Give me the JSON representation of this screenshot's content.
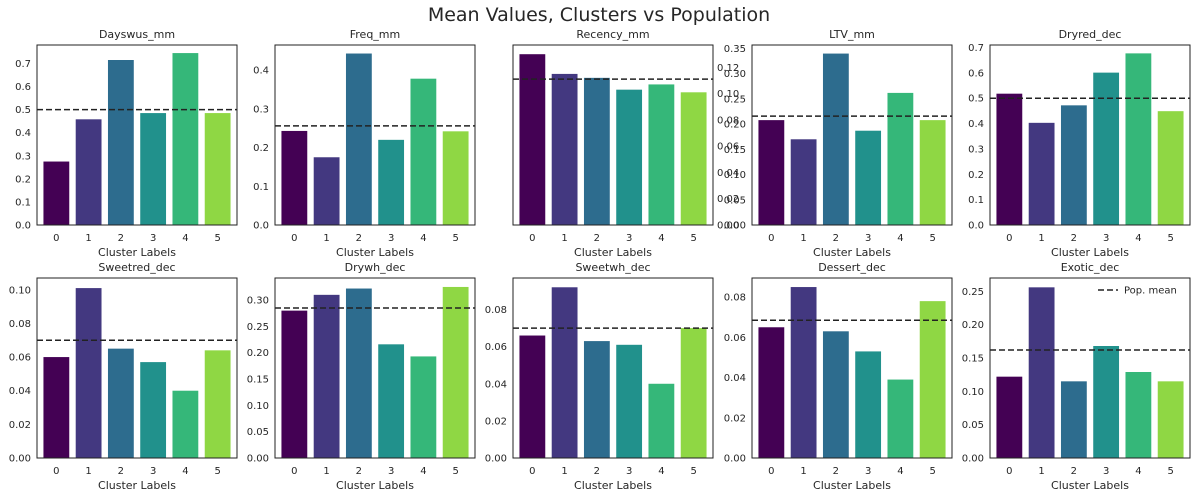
{
  "figure_title": "Mean Values, Clusters vs Population",
  "colors": [
    "#440154",
    "#433880",
    "#2d6c8e",
    "#21918c",
    "#35b779",
    "#8fd744"
  ],
  "legend": {
    "label": "Pop. mean",
    "placement": "top-right",
    "panel": 9
  },
  "chart_data": [
    {
      "type": "bar",
      "title": "Dayswus_mm",
      "xlabel": "Cluster Labels",
      "ylabel": "",
      "categories": [
        "0",
        "1",
        "2",
        "3",
        "4",
        "5"
      ],
      "values": [
        0.275,
        0.458,
        0.715,
        0.485,
        0.745,
        0.485
      ],
      "pop_mean": 0.5,
      "ylim": [
        0,
        0.78
      ],
      "yticks": [
        "0.0",
        "0.1",
        "0.2",
        "0.3",
        "0.4",
        "0.5",
        "0.6",
        "0.7"
      ]
    },
    {
      "type": "bar",
      "title": "Freq_mm",
      "xlabel": "Cluster Labels",
      "ylabel": "",
      "categories": [
        "0",
        "1",
        "2",
        "3",
        "4",
        "5"
      ],
      "values": [
        0.243,
        0.175,
        0.443,
        0.22,
        0.378,
        0.242
      ],
      "pop_mean": 0.256,
      "ylim": [
        0,
        0.465
      ],
      "yticks": [
        "0.0",
        "0.1",
        "0.2",
        "0.3",
        "0.4"
      ]
    },
    {
      "type": "bar",
      "title": "Recency_mm",
      "xlabel": "Cluster Labels",
      "ylabel": "",
      "categories": [
        "0",
        "1",
        "2",
        "3",
        "4",
        "5"
      ],
      "values": [
        0.13,
        0.115,
        0.112,
        0.103,
        0.107,
        0.101
      ],
      "pop_mean": 0.111,
      "ylim": [
        0,
        0.137
      ],
      "yticks": [
        "0.00",
        "0.02",
        "0.04",
        "0.06",
        "0.08",
        "0.10",
        "0.12"
      ]
    },
    {
      "type": "bar",
      "title": "LTV_mm",
      "xlabel": "Cluster Labels",
      "ylabel": "",
      "categories": [
        "0",
        "1",
        "2",
        "3",
        "4",
        "5"
      ],
      "values": [
        0.208,
        0.17,
        0.34,
        0.187,
        0.262,
        0.208
      ],
      "pop_mean": 0.216,
      "ylim": [
        0,
        0.357
      ],
      "yticks": [
        "0.00",
        "0.05",
        "0.10",
        "0.15",
        "0.20",
        "0.25",
        "0.30",
        "0.35"
      ]
    },
    {
      "type": "bar",
      "title": "Dryred_dec",
      "xlabel": "Cluster Labels",
      "ylabel": "",
      "categories": [
        "0",
        "1",
        "2",
        "3",
        "4",
        "5"
      ],
      "values": [
        0.518,
        0.403,
        0.472,
        0.601,
        0.677,
        0.449
      ],
      "pop_mean": 0.5,
      "ylim": [
        0,
        0.71
      ],
      "yticks": [
        "0.0",
        "0.1",
        "0.2",
        "0.3",
        "0.4",
        "0.5",
        "0.6",
        "0.7"
      ]
    },
    {
      "type": "bar",
      "title": "Sweetred_dec",
      "xlabel": "Cluster Labels",
      "ylabel": "",
      "categories": [
        "0",
        "1",
        "2",
        "3",
        "4",
        "5"
      ],
      "values": [
        0.06,
        0.101,
        0.065,
        0.057,
        0.04,
        0.064
      ],
      "pop_mean": 0.07,
      "ylim": [
        0,
        0.107
      ],
      "yticks": [
        "0.00",
        "0.02",
        "0.04",
        "0.06",
        "0.08",
        "0.10"
      ]
    },
    {
      "type": "bar",
      "title": "Drywh_dec",
      "xlabel": "Cluster Labels",
      "ylabel": "",
      "categories": [
        "0",
        "1",
        "2",
        "3",
        "4",
        "5"
      ],
      "values": [
        0.28,
        0.31,
        0.322,
        0.216,
        0.193,
        0.325
      ],
      "pop_mean": 0.285,
      "ylim": [
        0,
        0.342
      ],
      "yticks": [
        "0.00",
        "0.05",
        "0.10",
        "0.15",
        "0.20",
        "0.25",
        "0.30"
      ]
    },
    {
      "type": "bar",
      "title": "Sweetwh_dec",
      "xlabel": "Cluster Labels",
      "ylabel": "",
      "categories": [
        "0",
        "1",
        "2",
        "3",
        "4",
        "5"
      ],
      "values": [
        0.066,
        0.092,
        0.063,
        0.061,
        0.04,
        0.07
      ],
      "pop_mean": 0.07,
      "ylim": [
        0,
        0.097
      ],
      "yticks": [
        "0.00",
        "0.02",
        "0.04",
        "0.06",
        "0.08"
      ]
    },
    {
      "type": "bar",
      "title": "Dessert_dec",
      "xlabel": "Cluster Labels",
      "ylabel": "",
      "categories": [
        "0",
        "1",
        "2",
        "3",
        "4",
        "5"
      ],
      "values": [
        0.065,
        0.085,
        0.063,
        0.053,
        0.039,
        0.078
      ],
      "pop_mean": 0.0685,
      "ylim": [
        0,
        0.0895
      ],
      "yticks": [
        "0.00",
        "0.02",
        "0.04",
        "0.06",
        "0.08"
      ]
    },
    {
      "type": "bar",
      "title": "Exotic_dec",
      "xlabel": "Cluster Labels",
      "ylabel": "",
      "categories": [
        "0",
        "1",
        "2",
        "3",
        "4",
        "5"
      ],
      "values": [
        0.122,
        0.256,
        0.115,
        0.168,
        0.129,
        0.115
      ],
      "pop_mean": 0.162,
      "ylim": [
        0,
        0.27
      ],
      "yticks": [
        "0.00",
        "0.05",
        "0.10",
        "0.15",
        "0.20",
        "0.25"
      ]
    }
  ]
}
